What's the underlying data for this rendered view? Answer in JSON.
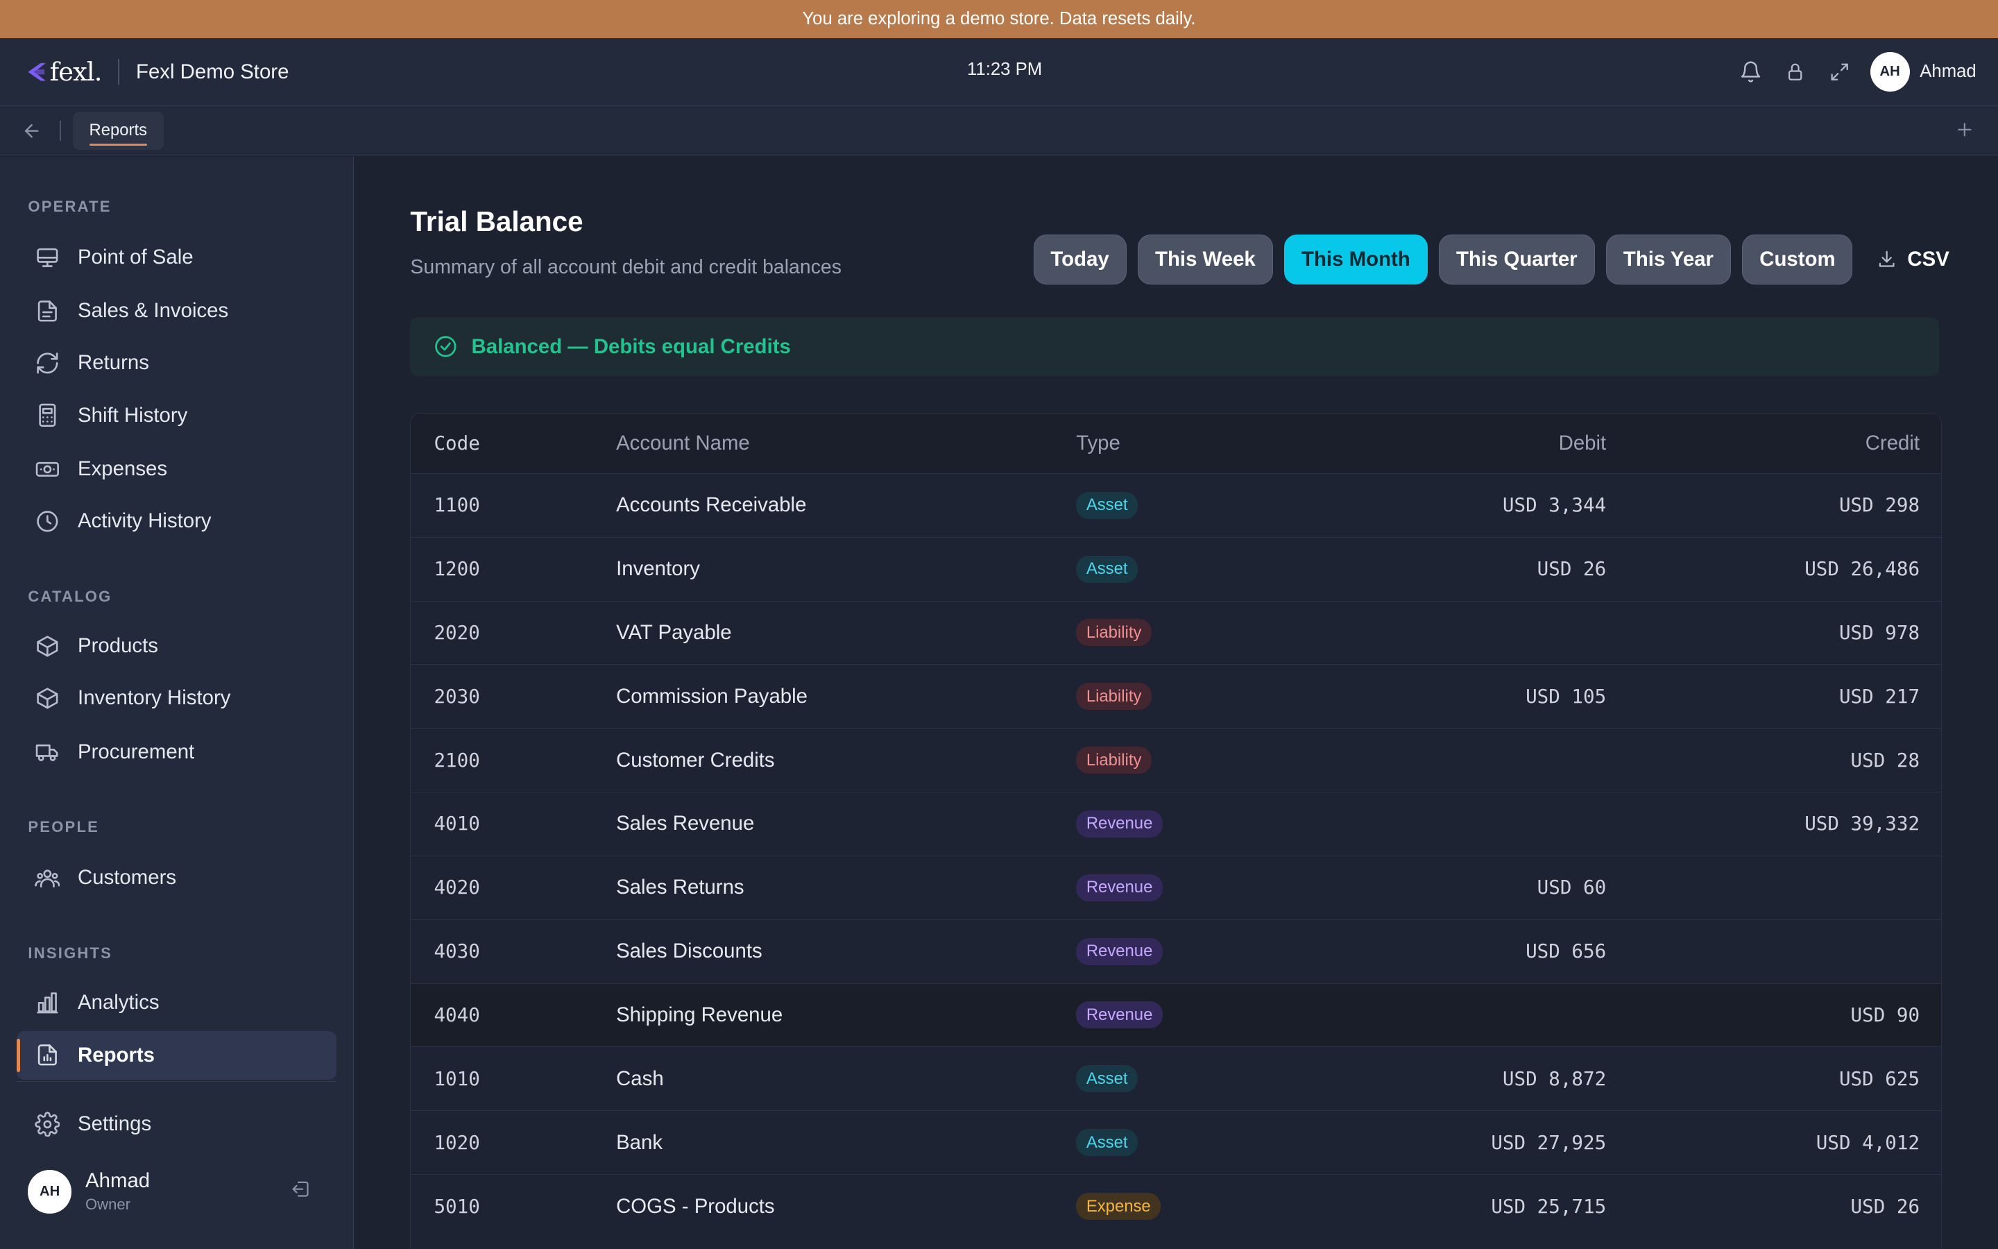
{
  "banner": {
    "text": "You are exploring a demo store. Data resets daily."
  },
  "header": {
    "logo_text": "fexl.",
    "store_name": "Fexl Demo Store",
    "time": "11:23 PM",
    "user_initials": "AH",
    "user_name": "Ahmad"
  },
  "tabs": {
    "items": [
      {
        "label": "Reports"
      }
    ]
  },
  "sidebar": {
    "sections": [
      {
        "title": "OPERATE",
        "items": [
          {
            "label": "Point of Sale",
            "icon": "monitor-icon"
          },
          {
            "label": "Sales & Invoices",
            "icon": "document-icon"
          },
          {
            "label": "Returns",
            "icon": "refresh-icon"
          },
          {
            "label": "Shift History",
            "icon": "calculator-icon"
          },
          {
            "label": "Expenses",
            "icon": "banknote-icon"
          },
          {
            "label": "Activity History",
            "icon": "clock-icon"
          }
        ]
      },
      {
        "title": "CATALOG",
        "items": [
          {
            "label": "Products",
            "icon": "box-icon"
          },
          {
            "label": "Inventory History",
            "icon": "box-icon"
          },
          {
            "label": "Procurement",
            "icon": "truck-icon"
          }
        ]
      },
      {
        "title": "PEOPLE",
        "items": [
          {
            "label": "Customers",
            "icon": "users-icon"
          }
        ]
      },
      {
        "title": "INSIGHTS",
        "items": [
          {
            "label": "Analytics",
            "icon": "bar-chart-icon"
          },
          {
            "label": "Reports",
            "icon": "report-icon",
            "active": true
          }
        ]
      }
    ],
    "settings_label": "Settings",
    "user": {
      "initials": "AH",
      "name": "Ahmad",
      "role": "Owner"
    }
  },
  "main": {
    "title": "Trial Balance",
    "subtitle": "Summary of all account debit and credit balances",
    "filters": [
      "Today",
      "This Week",
      "This Month",
      "This Quarter",
      "This Year",
      "Custom"
    ],
    "active_filter": "This Month",
    "csv_label": "CSV",
    "status": "Balanced — Debits equal Credits",
    "status_color": "#22c38e",
    "accent_color": "#08c8ea",
    "table": {
      "columns": [
        "Code",
        "Account Name",
        "Type",
        "Debit",
        "Credit"
      ],
      "rows": [
        {
          "code": "1100",
          "name": "Accounts Receivable",
          "type": "Asset",
          "debit": "USD 3,344",
          "credit": "USD 298"
        },
        {
          "code": "1200",
          "name": "Inventory",
          "type": "Asset",
          "debit": "USD 26",
          "credit": "USD 26,486"
        },
        {
          "code": "2020",
          "name": "VAT Payable",
          "type": "Liability",
          "debit": "",
          "credit": "USD 978"
        },
        {
          "code": "2030",
          "name": "Commission Payable",
          "type": "Liability",
          "debit": "USD 105",
          "credit": "USD 217"
        },
        {
          "code": "2100",
          "name": "Customer Credits",
          "type": "Liability",
          "debit": "",
          "credit": "USD 28"
        },
        {
          "code": "4010",
          "name": "Sales Revenue",
          "type": "Revenue",
          "debit": "",
          "credit": "USD 39,332"
        },
        {
          "code": "4020",
          "name": "Sales Returns",
          "type": "Revenue",
          "debit": "USD 60",
          "credit": ""
        },
        {
          "code": "4030",
          "name": "Sales Discounts",
          "type": "Revenue",
          "debit": "USD 656",
          "credit": ""
        },
        {
          "code": "4040",
          "name": "Shipping Revenue",
          "type": "Revenue",
          "debit": "",
          "credit": "USD 90",
          "highlighted": true
        },
        {
          "code": "1010",
          "name": "Cash",
          "type": "Asset",
          "debit": "USD 8,872",
          "credit": "USD 625"
        },
        {
          "code": "1020",
          "name": "Bank",
          "type": "Asset",
          "debit": "USD 27,925",
          "credit": "USD 4,012"
        },
        {
          "code": "5010",
          "name": "COGS - Products",
          "type": "Expense",
          "debit": "USD 25,715",
          "credit": "USD 26"
        }
      ]
    }
  }
}
